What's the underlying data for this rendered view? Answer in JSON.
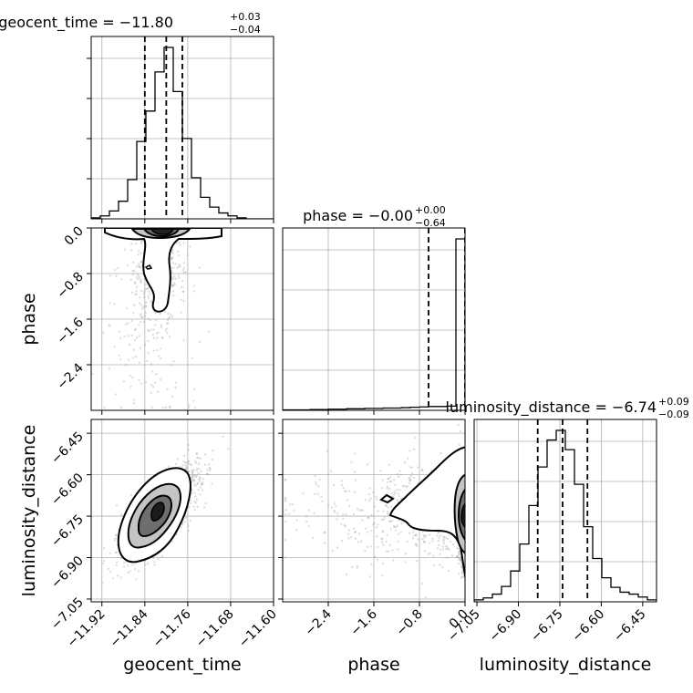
{
  "chart_data": {
    "type": "corner",
    "parameters": [
      "geocent_time",
      "phase",
      "luminosity_distance"
    ],
    "titles": [
      {
        "param": "geocent_time",
        "prefix": "geocent_time = ",
        "value": "−11.80",
        "plus": "+0.03",
        "minus": "−0.04"
      },
      {
        "param": "phase",
        "prefix": "phase = ",
        "value": "−0.00",
        "plus": "+0.00",
        "minus": "−0.64"
      },
      {
        "param": "luminosity_distance",
        "prefix": "luminosity_distance = ",
        "value": "−6.74",
        "plus": "+0.09",
        "minus": "−0.09"
      }
    ],
    "axis_labels": {
      "x": [
        "geocent_time",
        "phase",
        "luminosity_distance"
      ],
      "y": [
        "phase",
        "luminosity_distance"
      ]
    },
    "ranges": {
      "geocent_time": [
        -11.94,
        -11.6
      ],
      "phase": [
        -3.2,
        0.0
      ],
      "luminosity_distance": [
        -7.06,
        -6.4
      ]
    },
    "ticks": {
      "geocent_time": [
        {
          "v": -11.92,
          "label": "−11.92"
        },
        {
          "v": -11.84,
          "label": "−11.84"
        },
        {
          "v": -11.76,
          "label": "−11.76"
        },
        {
          "v": -11.68,
          "label": "−11.68"
        },
        {
          "v": -11.6,
          "label": "−11.60"
        }
      ],
      "phase": [
        {
          "v": -2.4,
          "label": "−2.4"
        },
        {
          "v": -1.6,
          "label": "−1.6"
        },
        {
          "v": -0.8,
          "label": "−0.8"
        },
        {
          "v": 0.0,
          "label": "0.0"
        }
      ],
      "luminosity_distance": [
        {
          "v": -7.05,
          "label": "−7.05"
        },
        {
          "v": -6.9,
          "label": "−6.90"
        },
        {
          "v": -6.75,
          "label": "−6.75"
        },
        {
          "v": -6.6,
          "label": "−6.60"
        },
        {
          "v": -6.45,
          "label": "−6.45"
        }
      ]
    },
    "histograms": {
      "geocent_time": {
        "bin_edges": [
          -11.94,
          -11.923,
          -11.906,
          -11.889,
          -11.872,
          -11.855,
          -11.838,
          -11.821,
          -11.804,
          -11.787,
          -11.77,
          -11.753,
          -11.736,
          -11.719,
          -11.702,
          -11.685,
          -11.668,
          -11.651,
          -11.634,
          -11.617,
          -11.6
        ],
        "counts": [
          1,
          3,
          8,
          18,
          40,
          79,
          110,
          150,
          175,
          130,
          82,
          42,
          22,
          12,
          6,
          3,
          1,
          0,
          0,
          0
        ],
        "quantiles": [
          -11.84,
          -11.8,
          -11.77
        ]
      },
      "phase": {
        "bin_edges": [
          -3.2,
          -3.04,
          -2.88,
          -2.72,
          -2.56,
          -2.4,
          -2.24,
          -2.08,
          -1.92,
          -1.76,
          -1.6,
          -1.44,
          -1.28,
          -1.12,
          -0.96,
          -0.8,
          -0.64,
          -0.48,
          -0.32,
          -0.16,
          0.0
        ],
        "counts": [
          1,
          1,
          1,
          2,
          2,
          3,
          3,
          4,
          4,
          5,
          5,
          6,
          6,
          7,
          8,
          9,
          10,
          10,
          11,
          450
        ],
        "quantiles": [
          -0.64,
          0.0,
          0.0
        ]
      },
      "luminosity_distance": {
        "bin_edges": [
          -7.06,
          -7.027,
          -6.994,
          -6.961,
          -6.928,
          -6.895,
          -6.862,
          -6.829,
          -6.796,
          -6.763,
          -6.73,
          -6.697,
          -6.664,
          -6.631,
          -6.598,
          -6.565,
          -6.532,
          -6.499,
          -6.466,
          -6.433,
          -6.4
        ],
        "counts": [
          2,
          4,
          8,
          16,
          32,
          60,
          100,
          140,
          168,
          178,
          158,
          122,
          78,
          45,
          25,
          15,
          10,
          8,
          5,
          2
        ],
        "quantiles": [
          -6.83,
          -6.74,
          -6.65
        ]
      }
    },
    "grid": true,
    "colors": {
      "samples": "#888888",
      "contour": "#000000",
      "quantile": "#000000",
      "grid": "#b0b0b0"
    }
  }
}
